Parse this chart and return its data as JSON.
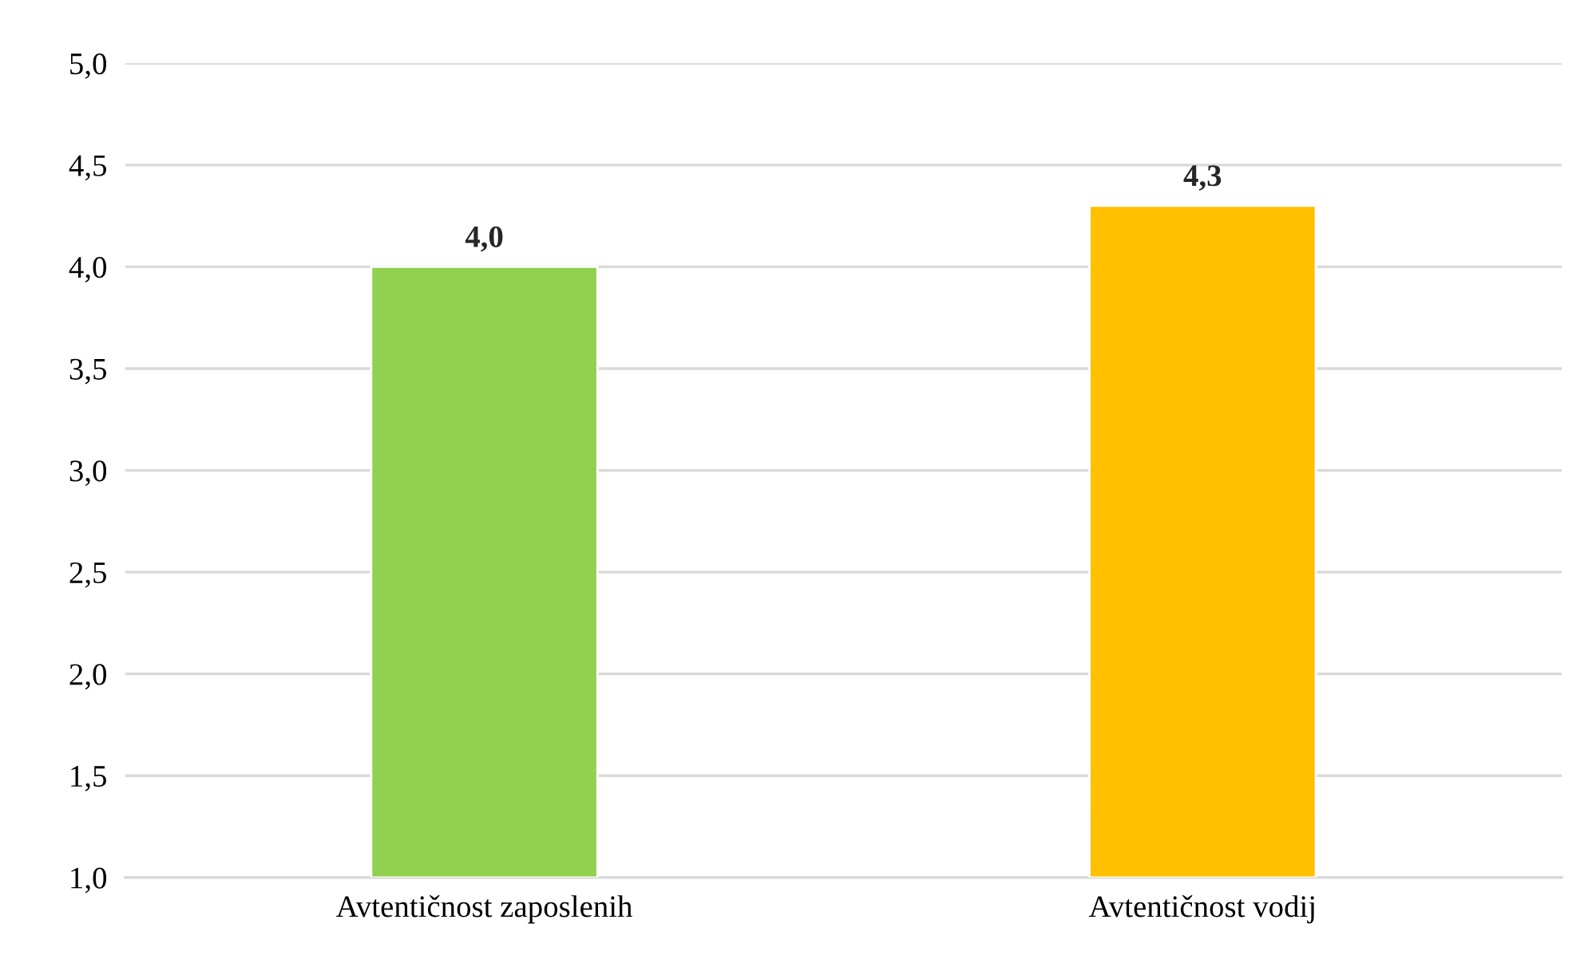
{
  "chart_data": {
    "type": "bar",
    "categories": [
      "Avtentičnost zaposlenih",
      "Avtentičnost vodij"
    ],
    "values": [
      4.0,
      4.3
    ],
    "colors": [
      "#92d050",
      "#ffc000"
    ],
    "value_labels": [
      "4,0",
      "4,3"
    ],
    "ylim": [
      1.0,
      5.0
    ],
    "yticks": [
      {
        "value": 1.0,
        "label": "1,0"
      },
      {
        "value": 1.5,
        "label": "1,5"
      },
      {
        "value": 2.0,
        "label": "2,0"
      },
      {
        "value": 2.5,
        "label": "2,5"
      },
      {
        "value": 3.0,
        "label": "3,0"
      },
      {
        "value": 3.5,
        "label": "3,5"
      },
      {
        "value": 4.0,
        "label": "4,0"
      },
      {
        "value": 4.5,
        "label": "4,5"
      },
      {
        "value": 5.0,
        "label": "5,0"
      }
    ],
    "grid": "y"
  }
}
